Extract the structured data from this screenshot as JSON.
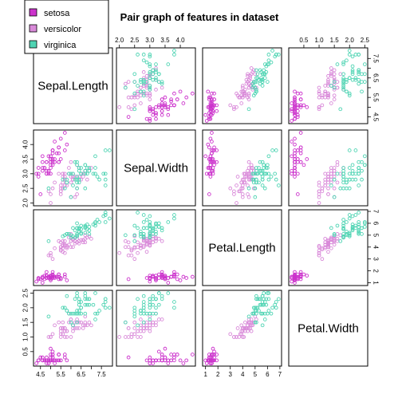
{
  "chart_data": {
    "type": "scatter",
    "title": "Pair graph of features in dataset",
    "variables": [
      "Sepal.Length",
      "Sepal.Width",
      "Petal.Length",
      "Petal.Width"
    ],
    "ranges": {
      "Sepal.Length": [
        4.3,
        7.9
      ],
      "Sepal.Width": [
        2.0,
        4.4
      ],
      "Petal.Length": [
        1.0,
        6.9
      ],
      "Petal.Width": [
        0.1,
        2.5
      ]
    },
    "ticks": {
      "Sepal.Length": [
        "4.5",
        "5.5",
        "6.5",
        "7.5"
      ],
      "Sepal.Width": [
        "2.0",
        "2.5",
        "3.0",
        "3.5",
        "4.0"
      ],
      "Petal.Length": [
        "1",
        "2",
        "3",
        "4",
        "5",
        "6",
        "7"
      ],
      "Petal.Width": [
        "0.5",
        "1.0",
        "1.5",
        "2.0",
        "2.5"
      ]
    },
    "tick_values": {
      "Sepal.Length": [
        4.5,
        5.0,
        5.5,
        6.0,
        6.5,
        7.0,
        7.5
      ],
      "Sepal.Width": [
        2.0,
        2.5,
        3.0,
        3.5,
        4.0
      ],
      "Petal.Length": [
        1,
        2,
        3,
        4,
        5,
        6,
        7
      ],
      "Petal.Width": [
        0.5,
        1.0,
        1.5,
        2.0,
        2.5
      ]
    },
    "legend": {
      "placement": "top-left",
      "entries": [
        {
          "name": "setosa",
          "color": "#cc33cc"
        },
        {
          "name": "versicolor",
          "color": "#d98ad9"
        },
        {
          "name": "virginica",
          "color": "#4fd4b3"
        }
      ]
    },
    "series": [
      {
        "name": "setosa",
        "color": "#cc33cc",
        "points": [
          [
            5.1,
            3.5,
            1.4,
            0.2
          ],
          [
            4.9,
            3.0,
            1.4,
            0.2
          ],
          [
            4.7,
            3.2,
            1.3,
            0.2
          ],
          [
            4.6,
            3.1,
            1.5,
            0.2
          ],
          [
            5.0,
            3.6,
            1.4,
            0.2
          ],
          [
            5.4,
            3.9,
            1.7,
            0.4
          ],
          [
            4.6,
            3.4,
            1.4,
            0.3
          ],
          [
            5.0,
            3.4,
            1.5,
            0.2
          ],
          [
            4.4,
            2.9,
            1.4,
            0.2
          ],
          [
            4.9,
            3.1,
            1.5,
            0.1
          ],
          [
            5.4,
            3.7,
            1.5,
            0.2
          ],
          [
            4.8,
            3.4,
            1.6,
            0.2
          ],
          [
            4.8,
            3.0,
            1.4,
            0.1
          ],
          [
            4.3,
            3.0,
            1.1,
            0.1
          ],
          [
            5.8,
            4.0,
            1.2,
            0.2
          ],
          [
            5.7,
            4.4,
            1.5,
            0.4
          ],
          [
            5.4,
            3.9,
            1.3,
            0.4
          ],
          [
            5.1,
            3.5,
            1.4,
            0.3
          ],
          [
            5.7,
            3.8,
            1.7,
            0.3
          ],
          [
            5.1,
            3.8,
            1.5,
            0.3
          ],
          [
            5.4,
            3.4,
            1.7,
            0.2
          ],
          [
            5.1,
            3.7,
            1.5,
            0.4
          ],
          [
            4.6,
            3.6,
            1.0,
            0.2
          ],
          [
            5.1,
            3.3,
            1.7,
            0.5
          ],
          [
            4.8,
            3.4,
            1.9,
            0.2
          ],
          [
            5.0,
            3.0,
            1.6,
            0.2
          ],
          [
            5.0,
            3.4,
            1.6,
            0.4
          ],
          [
            5.2,
            3.5,
            1.5,
            0.2
          ],
          [
            5.2,
            3.4,
            1.4,
            0.2
          ],
          [
            4.7,
            3.2,
            1.6,
            0.2
          ],
          [
            4.8,
            3.1,
            1.6,
            0.2
          ],
          [
            5.4,
            3.4,
            1.5,
            0.4
          ],
          [
            5.2,
            4.1,
            1.5,
            0.1
          ],
          [
            5.5,
            4.2,
            1.4,
            0.2
          ],
          [
            4.9,
            3.1,
            1.5,
            0.2
          ],
          [
            5.0,
            3.2,
            1.2,
            0.2
          ],
          [
            5.5,
            3.5,
            1.3,
            0.2
          ],
          [
            4.9,
            3.6,
            1.4,
            0.1
          ],
          [
            4.4,
            3.0,
            1.3,
            0.2
          ],
          [
            5.1,
            3.4,
            1.5,
            0.2
          ],
          [
            5.0,
            3.5,
            1.3,
            0.3
          ],
          [
            4.5,
            2.3,
            1.3,
            0.3
          ],
          [
            4.4,
            3.2,
            1.3,
            0.2
          ],
          [
            5.0,
            3.5,
            1.6,
            0.6
          ],
          [
            5.1,
            3.8,
            1.9,
            0.4
          ],
          [
            4.8,
            3.0,
            1.4,
            0.3
          ],
          [
            5.1,
            3.8,
            1.6,
            0.2
          ],
          [
            4.6,
            3.2,
            1.4,
            0.2
          ],
          [
            5.3,
            3.7,
            1.5,
            0.2
          ],
          [
            5.0,
            3.3,
            1.4,
            0.2
          ]
        ]
      },
      {
        "name": "versicolor",
        "color": "#d98ad9",
        "points": [
          [
            7.0,
            3.2,
            4.7,
            1.4
          ],
          [
            6.4,
            3.2,
            4.5,
            1.5
          ],
          [
            6.9,
            3.1,
            4.9,
            1.5
          ],
          [
            5.5,
            2.3,
            4.0,
            1.3
          ],
          [
            6.5,
            2.8,
            4.6,
            1.5
          ],
          [
            5.7,
            2.8,
            4.5,
            1.3
          ],
          [
            6.3,
            3.3,
            4.7,
            1.6
          ],
          [
            4.9,
            2.4,
            3.3,
            1.0
          ],
          [
            6.6,
            2.9,
            4.6,
            1.3
          ],
          [
            5.2,
            2.7,
            3.9,
            1.4
          ],
          [
            5.0,
            2.0,
            3.5,
            1.0
          ],
          [
            5.9,
            3.0,
            4.2,
            1.5
          ],
          [
            6.0,
            2.2,
            4.0,
            1.0
          ],
          [
            6.1,
            2.9,
            4.7,
            1.4
          ],
          [
            5.6,
            2.9,
            3.6,
            1.3
          ],
          [
            6.7,
            3.1,
            4.4,
            1.4
          ],
          [
            5.6,
            3.0,
            4.5,
            1.5
          ],
          [
            5.8,
            2.7,
            4.1,
            1.0
          ],
          [
            6.2,
            2.2,
            4.5,
            1.5
          ],
          [
            5.6,
            2.5,
            3.9,
            1.1
          ],
          [
            5.9,
            3.2,
            4.8,
            1.8
          ],
          [
            6.1,
            2.8,
            4.0,
            1.3
          ],
          [
            6.3,
            2.5,
            4.9,
            1.5
          ],
          [
            6.1,
            2.8,
            4.7,
            1.2
          ],
          [
            6.4,
            2.9,
            4.3,
            1.3
          ],
          [
            6.6,
            3.0,
            4.4,
            1.4
          ],
          [
            6.8,
            2.8,
            4.8,
            1.4
          ],
          [
            6.7,
            3.0,
            5.0,
            1.7
          ],
          [
            6.0,
            2.9,
            4.5,
            1.5
          ],
          [
            5.7,
            2.6,
            3.5,
            1.0
          ],
          [
            5.5,
            2.4,
            3.8,
            1.1
          ],
          [
            5.5,
            2.4,
            3.7,
            1.0
          ],
          [
            5.8,
            2.7,
            3.9,
            1.2
          ],
          [
            6.0,
            2.7,
            5.1,
            1.6
          ],
          [
            5.4,
            3.0,
            4.5,
            1.5
          ],
          [
            6.0,
            3.4,
            4.5,
            1.6
          ],
          [
            6.7,
            3.1,
            4.7,
            1.5
          ],
          [
            6.3,
            2.3,
            4.4,
            1.3
          ],
          [
            5.6,
            3.0,
            4.1,
            1.3
          ],
          [
            5.5,
            2.5,
            4.0,
            1.3
          ],
          [
            5.5,
            2.6,
            4.4,
            1.2
          ],
          [
            6.1,
            3.0,
            4.6,
            1.4
          ],
          [
            5.8,
            2.6,
            4.0,
            1.2
          ],
          [
            5.0,
            2.3,
            3.3,
            1.0
          ],
          [
            5.6,
            2.7,
            4.2,
            1.3
          ],
          [
            5.7,
            3.0,
            4.2,
            1.2
          ],
          [
            5.7,
            2.9,
            4.2,
            1.3
          ],
          [
            6.2,
            2.9,
            4.3,
            1.3
          ],
          [
            5.1,
            2.5,
            3.0,
            1.1
          ],
          [
            5.7,
            2.8,
            4.1,
            1.3
          ]
        ]
      },
      {
        "name": "virginica",
        "color": "#4fd4b3",
        "points": [
          [
            6.3,
            3.3,
            6.0,
            2.5
          ],
          [
            5.8,
            2.7,
            5.1,
            1.9
          ],
          [
            7.1,
            3.0,
            5.9,
            2.1
          ],
          [
            6.3,
            2.9,
            5.6,
            1.8
          ],
          [
            6.5,
            3.0,
            5.8,
            2.2
          ],
          [
            7.6,
            3.0,
            6.6,
            2.1
          ],
          [
            4.9,
            2.5,
            4.5,
            1.7
          ],
          [
            7.3,
            2.9,
            6.3,
            1.8
          ],
          [
            6.7,
            2.5,
            5.8,
            1.8
          ],
          [
            7.2,
            3.6,
            6.1,
            2.5
          ],
          [
            6.5,
            3.2,
            5.1,
            2.0
          ],
          [
            6.4,
            2.7,
            5.3,
            1.9
          ],
          [
            6.8,
            3.0,
            5.5,
            2.1
          ],
          [
            5.7,
            2.5,
            5.0,
            2.0
          ],
          [
            5.8,
            2.8,
            5.1,
            2.4
          ],
          [
            6.4,
            3.2,
            5.3,
            2.3
          ],
          [
            6.5,
            3.0,
            5.5,
            1.8
          ],
          [
            7.7,
            3.8,
            6.7,
            2.2
          ],
          [
            7.7,
            2.6,
            6.9,
            2.3
          ],
          [
            6.0,
            2.2,
            5.0,
            1.5
          ],
          [
            6.9,
            3.2,
            5.7,
            2.3
          ],
          [
            5.6,
            2.8,
            4.9,
            2.0
          ],
          [
            7.7,
            2.8,
            6.7,
            2.0
          ],
          [
            6.3,
            2.7,
            4.9,
            1.8
          ],
          [
            6.7,
            3.3,
            5.7,
            2.1
          ],
          [
            7.2,
            3.2,
            6.0,
            1.8
          ],
          [
            6.2,
            2.8,
            4.8,
            1.8
          ],
          [
            6.1,
            3.0,
            4.9,
            1.8
          ],
          [
            6.4,
            2.8,
            5.6,
            2.1
          ],
          [
            7.2,
            3.0,
            5.8,
            1.6
          ],
          [
            7.4,
            2.8,
            6.1,
            1.9
          ],
          [
            7.9,
            3.8,
            6.4,
            2.0
          ],
          [
            6.4,
            2.8,
            5.6,
            2.2
          ],
          [
            6.3,
            2.8,
            5.1,
            1.5
          ],
          [
            6.1,
            2.6,
            5.6,
            1.4
          ],
          [
            7.7,
            3.0,
            6.1,
            2.3
          ],
          [
            6.3,
            3.4,
            5.6,
            2.4
          ],
          [
            6.4,
            3.1,
            5.5,
            1.8
          ],
          [
            6.0,
            3.0,
            4.8,
            1.8
          ],
          [
            6.9,
            3.1,
            5.4,
            2.1
          ],
          [
            6.7,
            3.1,
            5.6,
            2.4
          ],
          [
            6.9,
            3.1,
            5.1,
            2.3
          ],
          [
            5.8,
            2.7,
            5.1,
            1.9
          ],
          [
            6.8,
            3.2,
            5.9,
            2.3
          ],
          [
            6.7,
            3.3,
            5.7,
            2.5
          ],
          [
            6.7,
            3.0,
            5.2,
            2.3
          ],
          [
            6.3,
            2.5,
            5.0,
            1.9
          ],
          [
            6.5,
            3.0,
            5.2,
            2.0
          ],
          [
            6.2,
            3.4,
            5.4,
            2.3
          ],
          [
            5.9,
            3.0,
            5.1,
            1.8
          ]
        ]
      }
    ]
  }
}
